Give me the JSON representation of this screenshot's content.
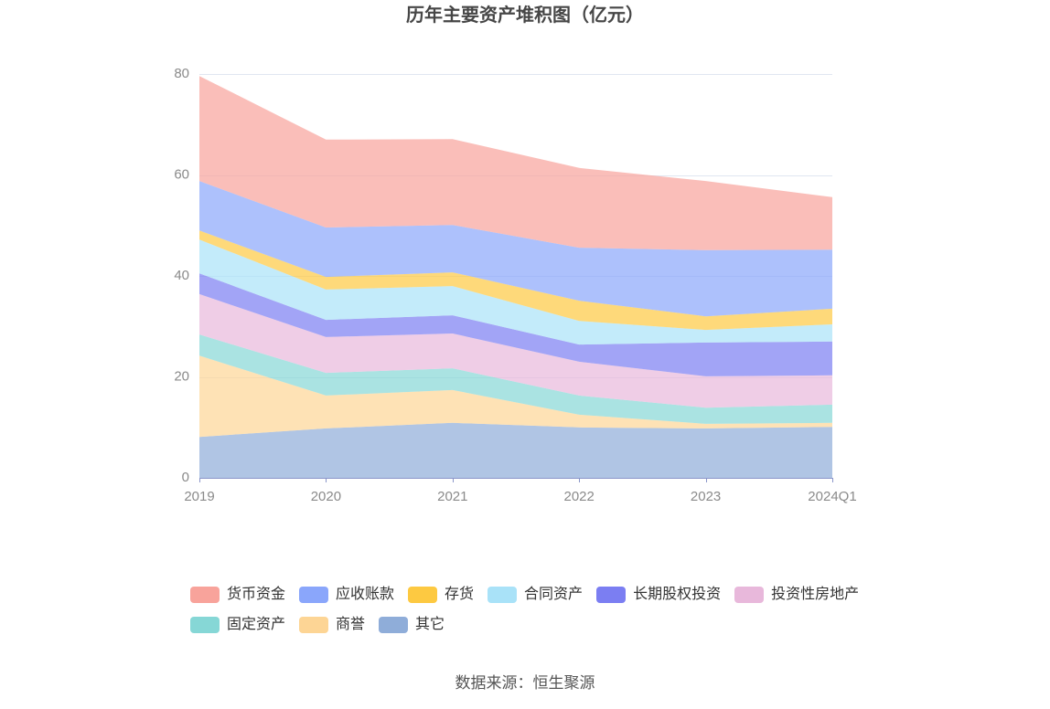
{
  "chart_data": {
    "type": "area",
    "stacked": true,
    "title": "历年主要资产堆积图（亿元）",
    "categories": [
      "2019",
      "2020",
      "2021",
      "2022",
      "2023",
      "2024Q1"
    ],
    "ylim": [
      0,
      80
    ],
    "yticks": [
      0,
      20,
      40,
      60,
      80
    ],
    "grid": true,
    "legend_position": "bottom",
    "series": [
      {
        "name": "货币资金",
        "color": "#f8a39b",
        "values": [
          20.8,
          17.4,
          17.0,
          15.8,
          13.7,
          10.4
        ]
      },
      {
        "name": "应收账款",
        "color": "#8aa6fb",
        "values": [
          9.8,
          9.8,
          9.4,
          10.5,
          13.1,
          11.7
        ]
      },
      {
        "name": "存货",
        "color": "#fdc941",
        "values": [
          1.8,
          2.5,
          2.7,
          4.0,
          2.7,
          3.1
        ]
      },
      {
        "name": "合同资产",
        "color": "#a9e2f8",
        "values": [
          6.7,
          6.0,
          5.8,
          4.7,
          2.5,
          3.4
        ]
      },
      {
        "name": "长期股权投资",
        "color": "#7b7ef2",
        "values": [
          4.1,
          3.4,
          3.6,
          3.4,
          6.7,
          6.7
        ]
      },
      {
        "name": "投资性房地产",
        "color": "#e8b8db",
        "values": [
          8.0,
          7.1,
          6.9,
          6.7,
          6.2,
          5.8
        ]
      },
      {
        "name": "固定资产",
        "color": "#86d7d6",
        "values": [
          4.2,
          4.5,
          4.3,
          3.8,
          3.2,
          3.6
        ]
      },
      {
        "name": "商誉",
        "color": "#fdd595",
        "values": [
          16.1,
          6.5,
          6.5,
          2.5,
          0.9,
          0.8
        ]
      },
      {
        "name": "其它",
        "color": "#8fadd9",
        "values": [
          8.1,
          9.8,
          10.9,
          10.0,
          9.8,
          10.1
        ]
      }
    ]
  },
  "source": "数据来源：恒生聚源"
}
